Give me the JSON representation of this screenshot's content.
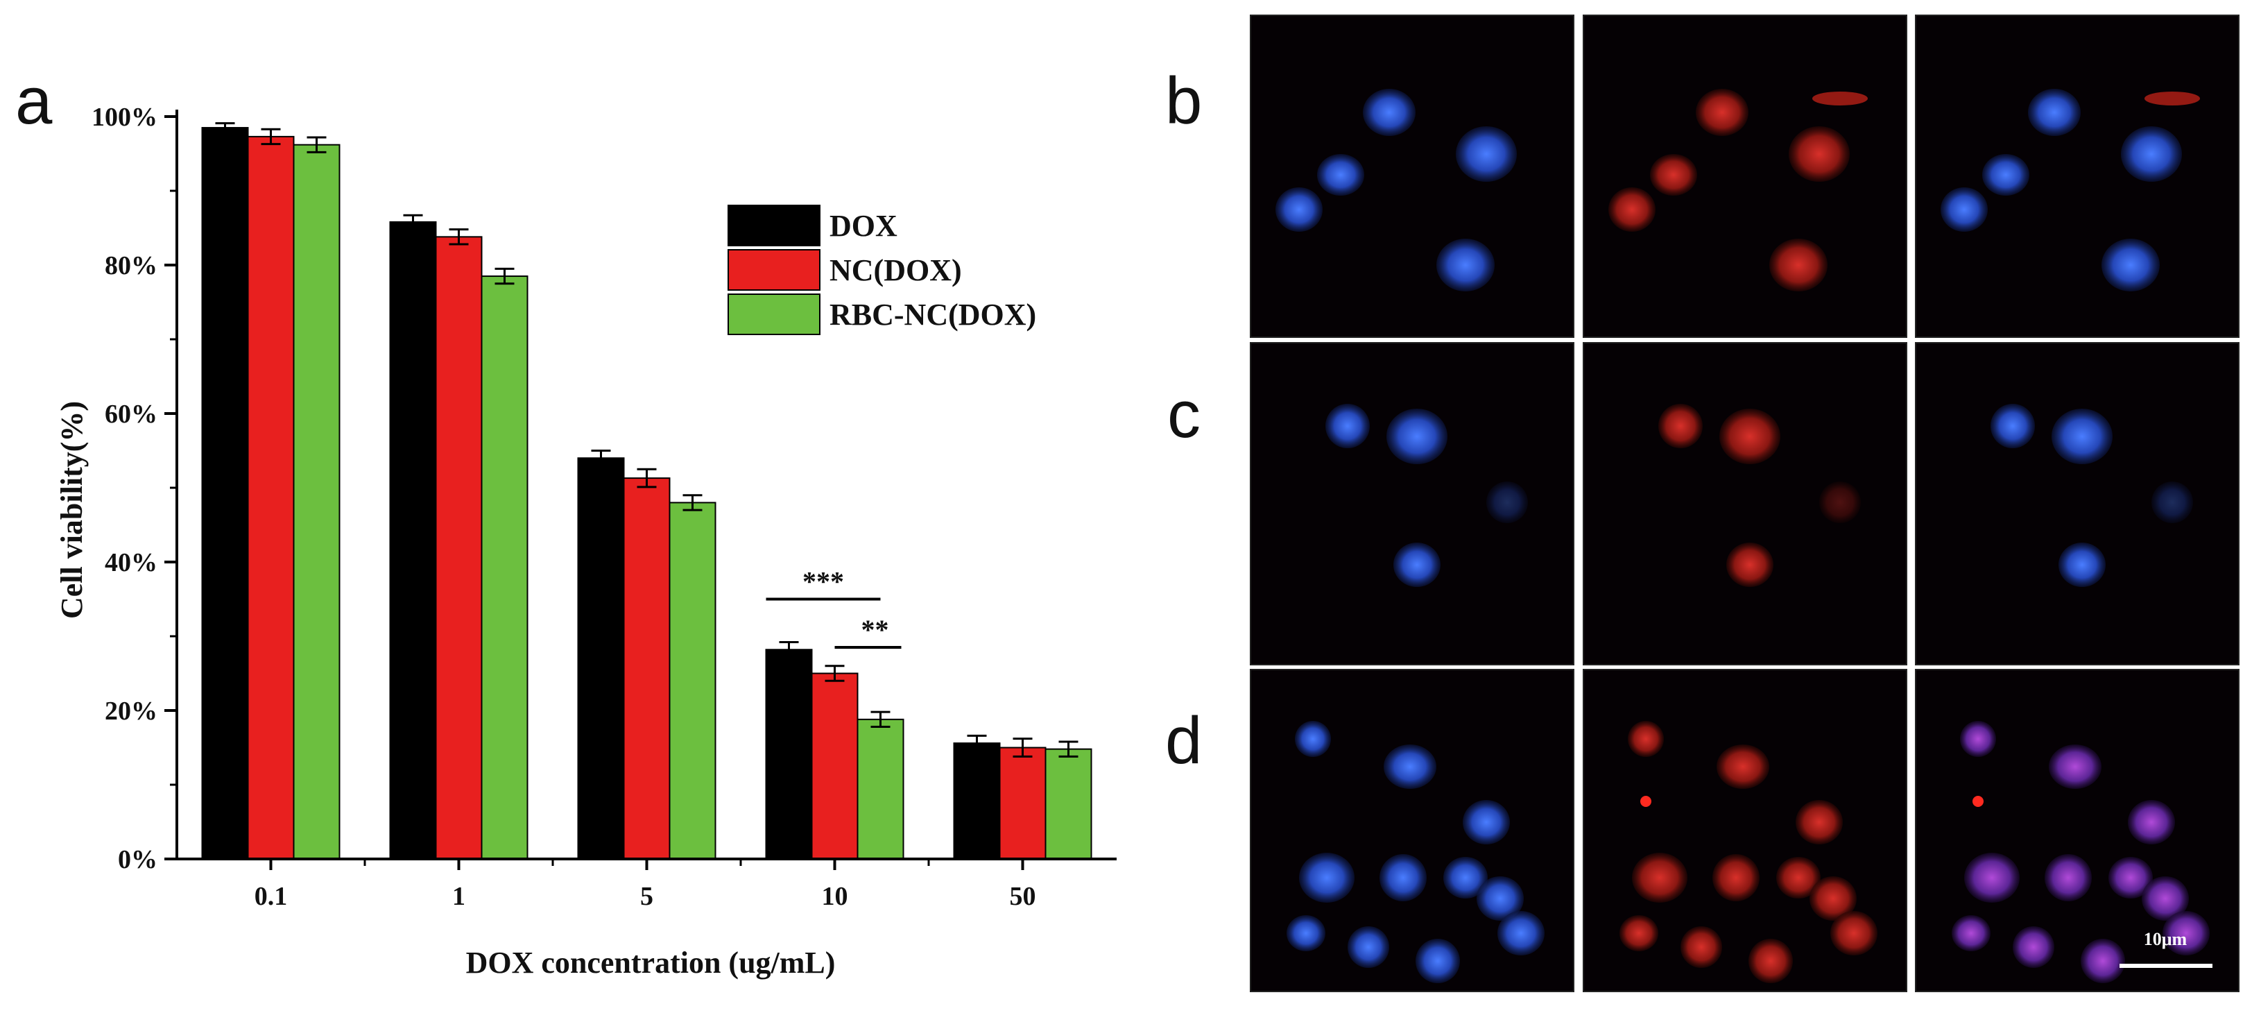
{
  "panels": {
    "a": "a",
    "b": "b",
    "c": "c",
    "d": "d"
  },
  "chart_data": {
    "type": "bar",
    "categories": [
      "0.1",
      "1",
      "5",
      "10",
      "50"
    ],
    "series": [
      {
        "name": "DOX",
        "color": "#000000",
        "values": [
          98.5,
          85.8,
          54.0,
          28.2,
          15.6
        ],
        "errors": [
          0.6,
          0.9,
          1.0,
          1.0,
          1.0
        ]
      },
      {
        "name": "NC(DOX)",
        "color": "#e8201f",
        "values": [
          97.3,
          83.8,
          51.3,
          25.0,
          15.0
        ],
        "errors": [
          1.0,
          1.0,
          1.2,
          1.0,
          1.2
        ]
      },
      {
        "name": "RBC-NC(DOX)",
        "color": "#6cbf3f",
        "values": [
          96.2,
          78.5,
          48.0,
          18.8,
          14.8
        ],
        "errors": [
          1.0,
          1.0,
          1.0,
          1.0,
          1.0
        ]
      }
    ],
    "xlabel": "DOX concentration (ug/mL)",
    "ylabel": "Cell viability(%)",
    "ylim": [
      0,
      100
    ],
    "yticks": [
      "0%",
      "20%",
      "40%",
      "60%",
      "80%",
      "100%"
    ],
    "legend_position": "top-right",
    "grid": false,
    "annotations": [
      {
        "text": "***",
        "from": "DOX@10",
        "to": "RBC-NC(DOX)@10"
      },
      {
        "text": "**",
        "from": "NC(DOX)@10",
        "to": "RBC-NC(DOX)@10"
      }
    ]
  },
  "microscopy": {
    "scale_bar_label": "10μm"
  }
}
